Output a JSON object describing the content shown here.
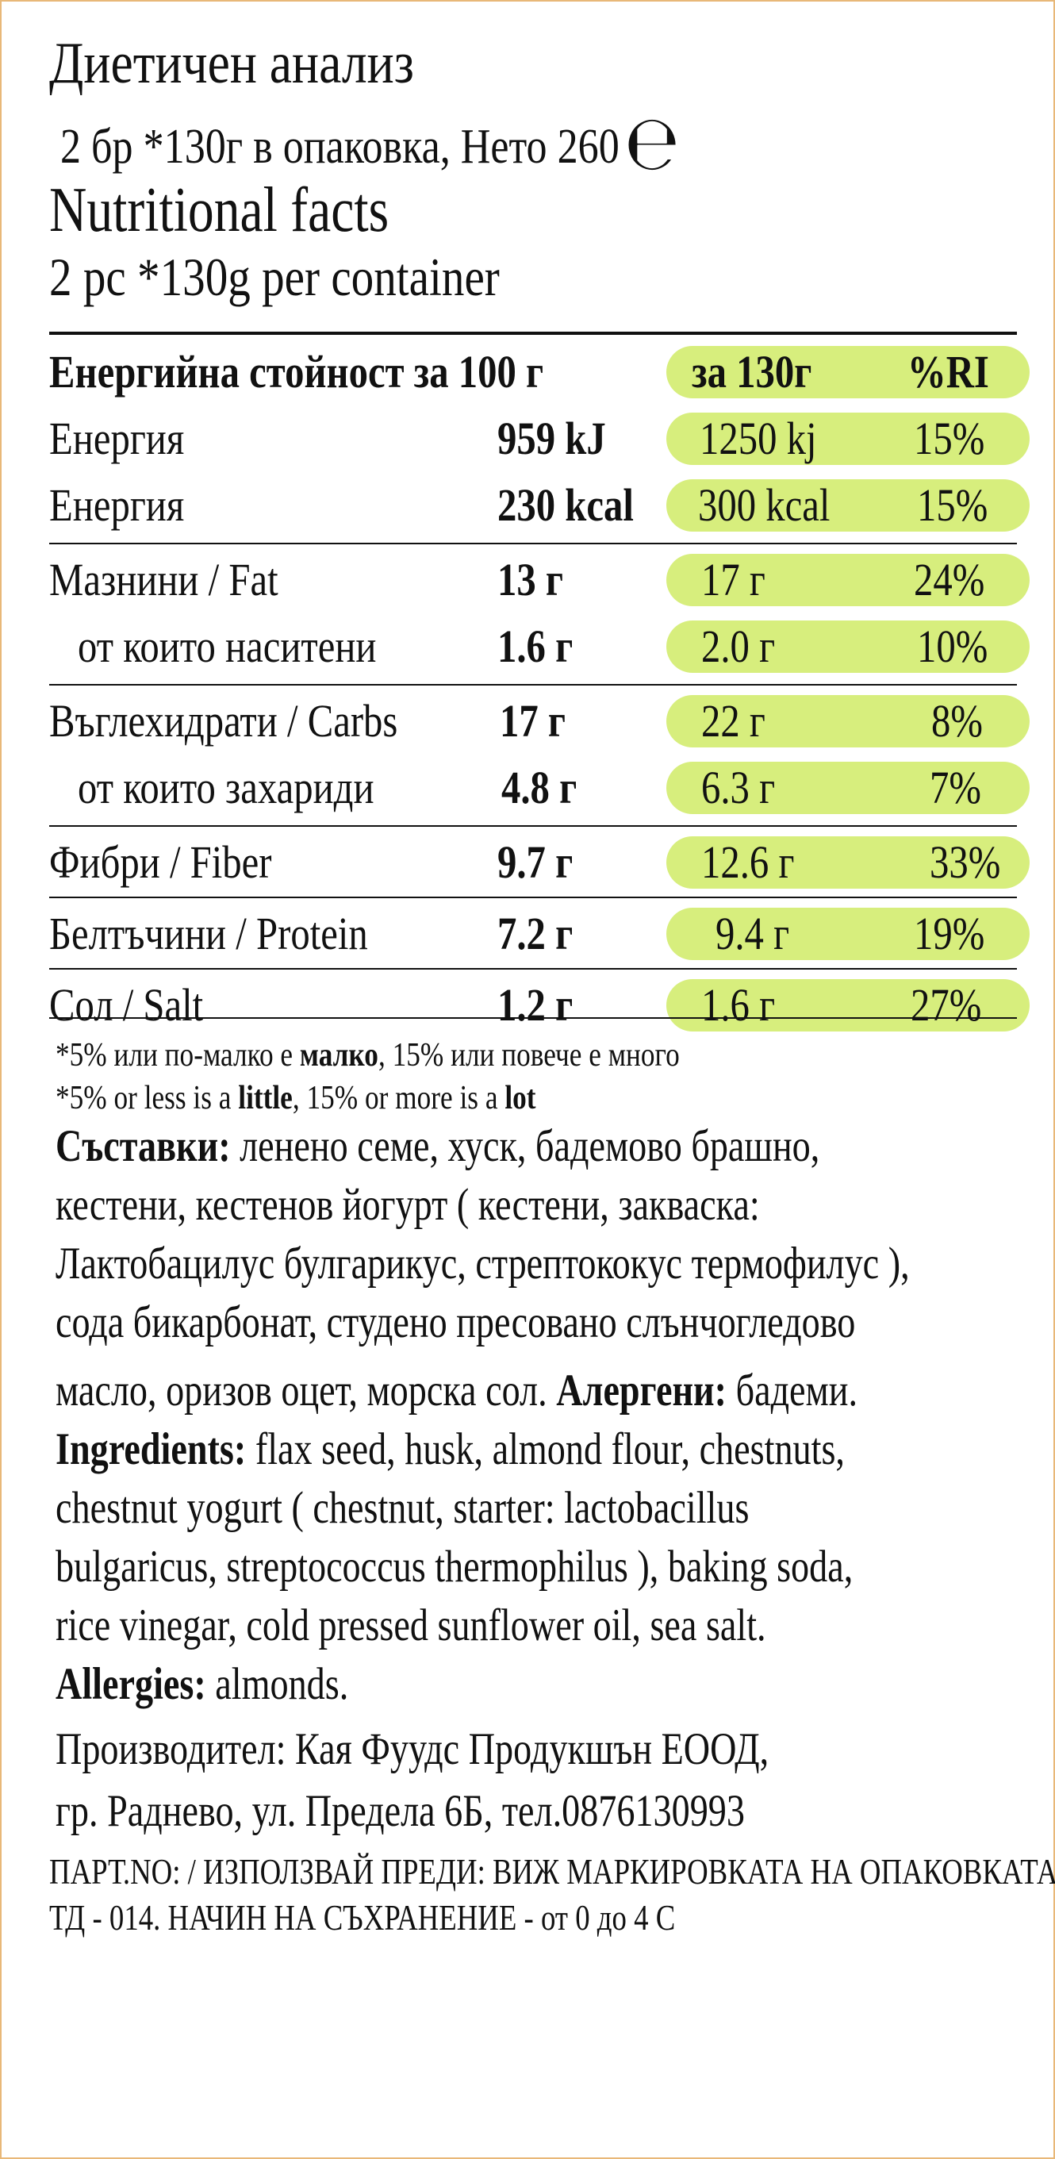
{
  "header": {
    "title_bg": "Диетичен анализ",
    "subtitle_bg": "2 бр *130г в опаковка, Нето 260",
    "estimated_mark": "℮",
    "title_en": "Nutritional facts",
    "subtitle_en": "2 pc *130g  per container"
  },
  "table": {
    "header": {
      "label": "Енергийна стойност за 100 г",
      "serving": "за 130г",
      "ri": "%RI"
    },
    "rows": [
      {
        "label": "Енергия",
        "value": "959 kJ",
        "serving": "1250 kj",
        "ri": "15%"
      },
      {
        "label": "Енергия",
        "value": "230 kcal",
        "serving": "300 kcal",
        "ri": "15%"
      },
      {
        "label": "Мазнини / Fat",
        "value": "13 г",
        "serving": "17 г",
        "ri": "24%"
      },
      {
        "label": "от които наситени",
        "value": "1.6 г",
        "serving": "2.0 г",
        "ri": "10%"
      },
      {
        "label": "Въглехидрати / Carbs",
        "value": "17  г",
        "serving": "22 г",
        "ri": "8%"
      },
      {
        "label": "от които захариди",
        "value": "4.8 г",
        "serving": "6.3 г",
        "ri": "7%"
      },
      {
        "label": "Фибри / Fiber",
        "value": "9.7 г",
        "serving": "12.6 г",
        "ri": "33%"
      },
      {
        "label": "Белтъчини / Protein",
        "value": "7.2 г",
        "serving": "9.4 г",
        "ri": "19%"
      },
      {
        "label": "Сол / Salt",
        "value": "1.2 г",
        "serving": "1.6 г",
        "ri": "27%"
      }
    ],
    "highlight_color": "#d7ee7d"
  },
  "notes": {
    "bg_a": "*5% или по-малко е ",
    "bg_b": "малко",
    "bg_c": ", 15% или повече е много",
    "en_a": "*5% or less is a ",
    "en_b": "little",
    "en_c": ", 15% or more is a ",
    "en_d": "lot"
  },
  "ingredients_bg": {
    "heading": "Съставки:",
    "line1": " ленено семе, хуск, бадемово брашно,",
    "line2": "кестени, кестенов йогурт ( кестени, закваска:",
    "line3": "Лактобацилус булгарикус, стрептококус термофилус ),",
    "line4": "сода бикарбонат, студено пресовано слънчогледово",
    "line5a": "масло, оризов оцет, морска сол. ",
    "allergens_heading": "Алергени:",
    "allergens": " бадеми."
  },
  "ingredients_en": {
    "heading": "Ingredients:",
    "line1": " flax seed, husk, almond flour, chestnuts,",
    "line2": "chestnut yogurt ( chestnut, starter: lactobacillus",
    "line3": "bulgaricus, streptococcus thermophilus ), baking soda,",
    "line4": "rice vinegar, cold pressed sunflower oil, sea salt.",
    "allergies_heading": "Allergies:",
    "allergies": " almonds."
  },
  "producer": {
    "line1": "Производител: Кая Фуудс Продукшън ЕООД,",
    "line2": "гр. Раднево, ул. Предела 6Б, тел.0876130993"
  },
  "footer": {
    "line1": "ПАРТ.NO: / ИЗПОЛЗВАЙ ПРЕДИ: ВИЖ МАРКИРОВКАТА НА ОПАКОВКАТА",
    "line2": "ТД - 014. НАЧИН НА СЪХРАНЕНИЕ - от 0 до 4 С"
  }
}
